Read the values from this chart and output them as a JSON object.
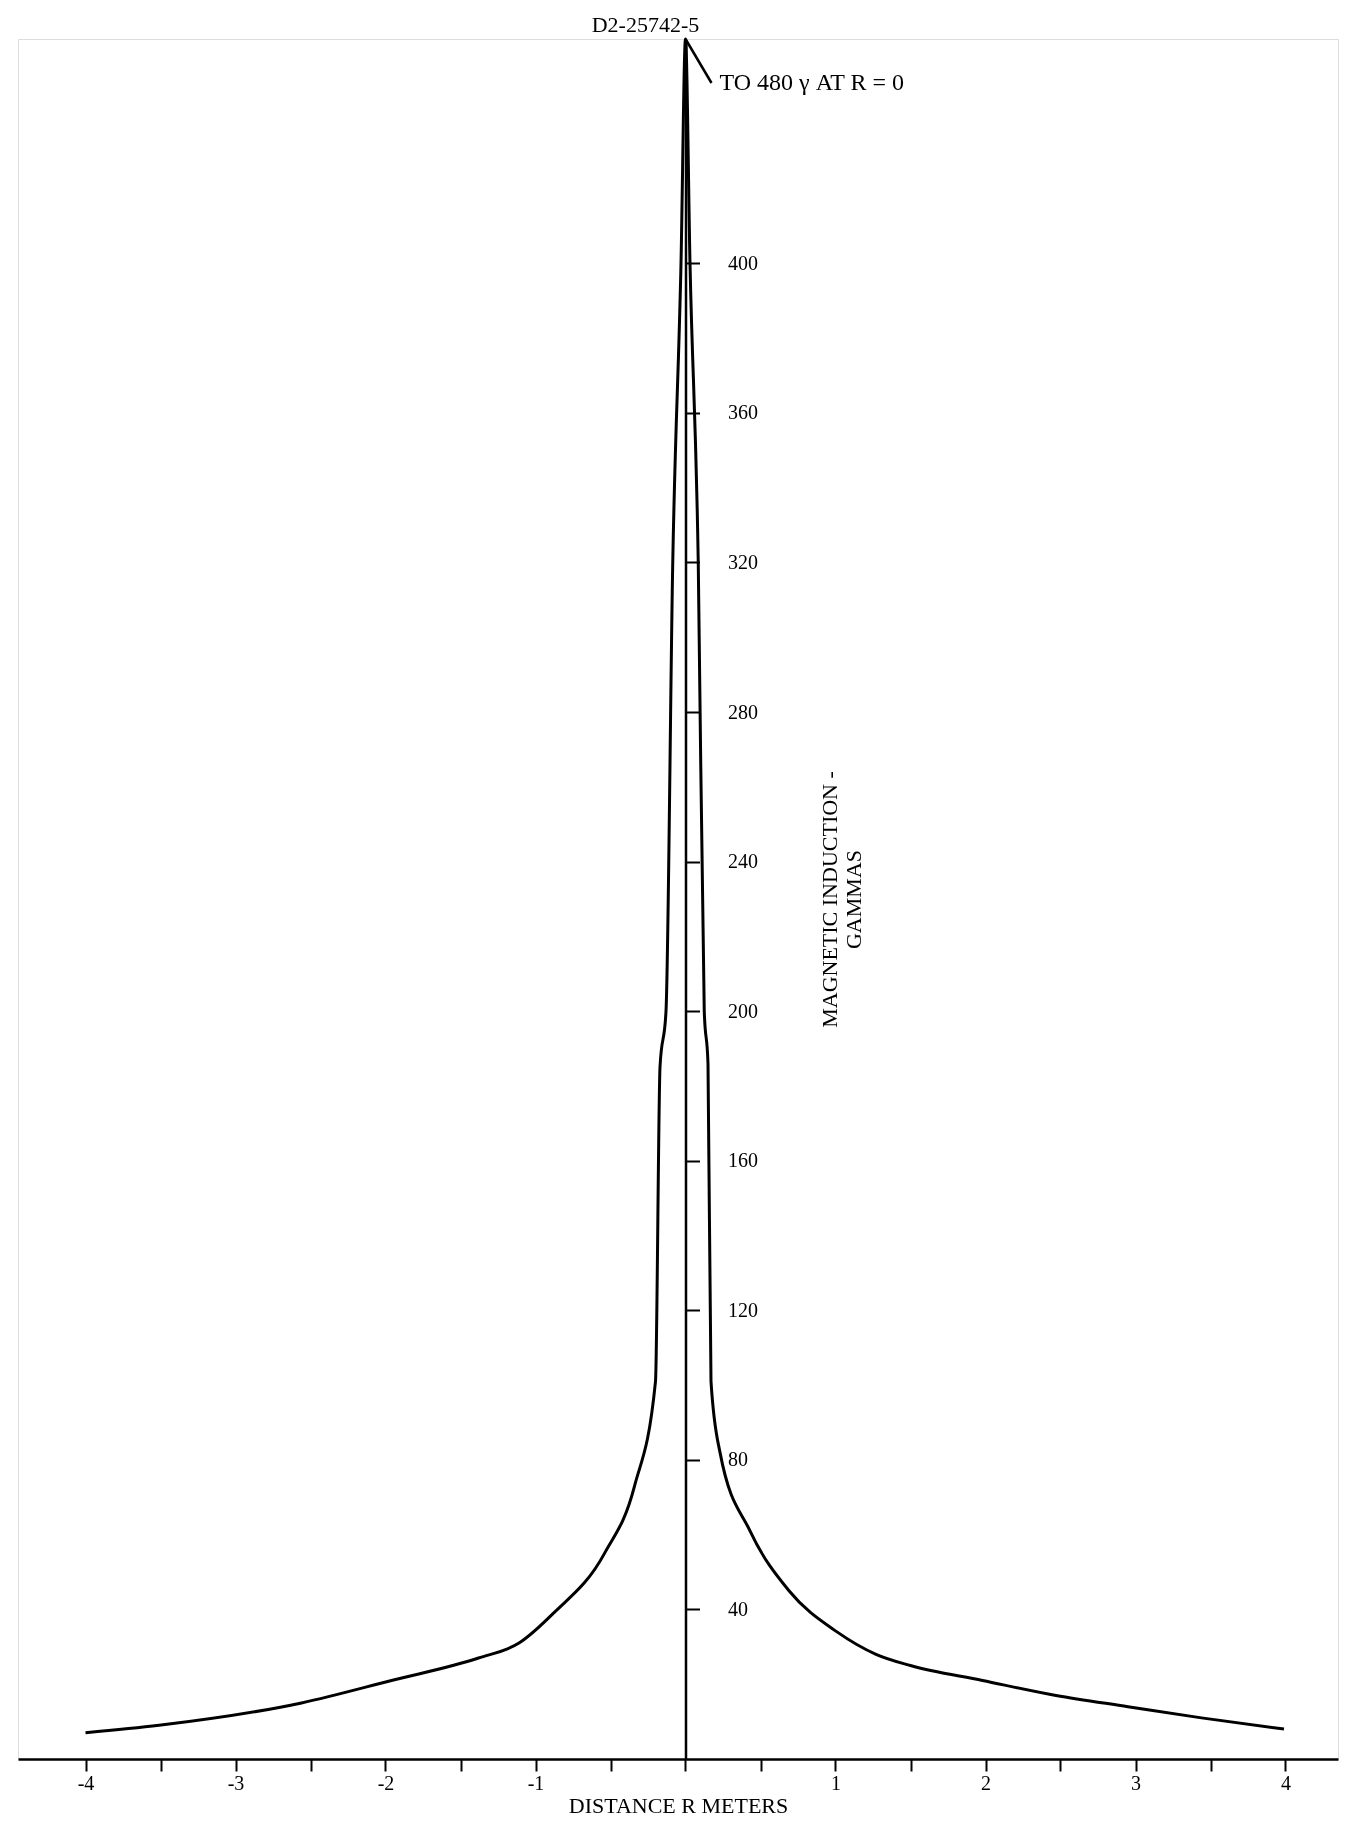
{
  "chart_data": {
    "type": "line",
    "xlabel": "DISTANCE R  METERS",
    "ylabel": "MAGNETIC INDUCTION -\nGAMMAS",
    "x": [
      -4.0,
      -3.51,
      -2.56,
      -1.96,
      -1.38,
      -1.11,
      -0.88,
      -0.54,
      -0.34,
      -0.2,
      -0.17,
      -0.13,
      -0.085,
      -0.03,
      0,
      0.03,
      0.085,
      0.125,
      0.15,
      0.17,
      0.23,
      0.43,
      0.69,
      1.01,
      1.27,
      1.5,
      1.98,
      2.47,
      2.95,
      3.44,
      3.99
    ],
    "series": [
      {
        "color": "#000000",
        "values": [
          7,
          9,
          15,
          21,
          27,
          31,
          39,
          55,
          73,
          101,
          185,
          200,
          320,
          400,
          460,
          400,
          320,
          200,
          186,
          101,
          82,
          61,
          45,
          34,
          28,
          25,
          21,
          17,
          14,
          11,
          8
        ]
      }
    ],
    "xlim": [
      -4.45,
      4.35
    ],
    "ylim": [
      0,
      460
    ],
    "xticks": [
      -4,
      {
        "value": -3.5,
        "label": null
      },
      -3,
      {
        "value": -2.5,
        "label": null
      },
      -2,
      {
        "value": -1.5,
        "label": null
      },
      -1,
      {
        "value": -0.5,
        "label": null
      },
      {
        "value": 0,
        "label": null
      },
      {
        "value": 0.5,
        "label": null
      },
      1,
      {
        "value": 1.5,
        "label": null
      },
      2,
      {
        "value": 2.5,
        "label": null
      },
      3,
      {
        "value": 3.5,
        "label": null
      },
      4
    ],
    "yticks": [
      40,
      80,
      120,
      160,
      200,
      240,
      280,
      320,
      360,
      400
    ],
    "grid": false,
    "marker": "none",
    "line_style": "solid",
    "annotations": [
      "D2-25742-5",
      {
        "text": "TO 480 γ AT R = 0",
        "x": 0,
        "y": 460
      }
    ]
  }
}
